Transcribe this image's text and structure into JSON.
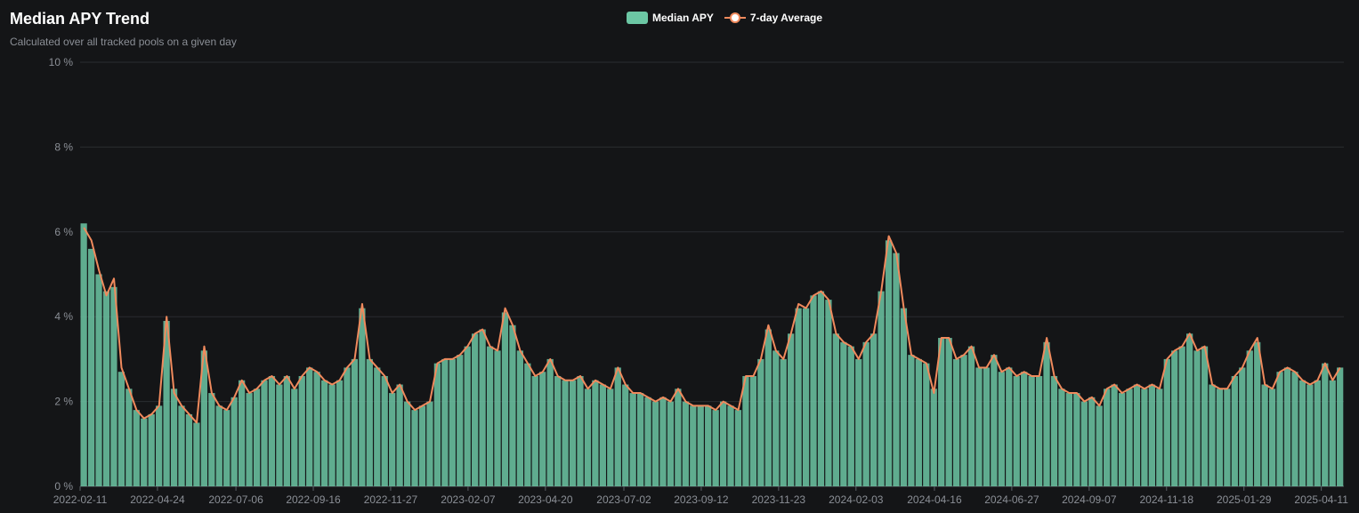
{
  "header": {
    "title": "Median APY Trend",
    "subtitle": "Calculated over all tracked pools on a given day"
  },
  "legend": [
    {
      "label": "Median APY",
      "color": "#6cc7a4",
      "kind": "bar"
    },
    {
      "label": "7-day Average",
      "color": "#f08a5d",
      "kind": "line"
    }
  ],
  "chart_data": {
    "type": "bar",
    "title": "Median APY Trend",
    "subtitle": "Calculated over all tracked pools on a given day",
    "xlabel": "",
    "ylabel": "",
    "ylim": [
      0,
      10
    ],
    "y_ticks": [
      0,
      2,
      4,
      6,
      8,
      10
    ],
    "y_tick_labels": [
      "0 %",
      "2 %",
      "4 %",
      "6 %",
      "8 %",
      "10 %"
    ],
    "grid": true,
    "legend_position": "top-center",
    "x_tick_labels": [
      "2022-02-11",
      "2022-04-24",
      "2022-07-06",
      "2022-09-16",
      "2022-11-27",
      "2023-02-07",
      "2023-04-20",
      "2023-07-02",
      "2023-09-12",
      "2023-11-23",
      "2024-02-03",
      "2024-04-16",
      "2024-06-27",
      "2024-09-07",
      "2024-11-18",
      "2025-01-29",
      "2025-04-11"
    ],
    "x_tick_interval_days": 72,
    "series_weekly": [
      {
        "week_start": "2022-02-11",
        "median_apy": 6.2,
        "avg_7d": 6.1
      },
      {
        "week_start": "2022-02-18",
        "median_apy": 5.6,
        "avg_7d": 5.8
      },
      {
        "week_start": "2022-02-25",
        "median_apy": 5.0,
        "avg_7d": 5.1
      },
      {
        "week_start": "2022-03-04",
        "median_apy": 4.6,
        "avg_7d": 4.5
      },
      {
        "week_start": "2022-03-11",
        "median_apy": 4.7,
        "avg_7d": 4.9
      },
      {
        "week_start": "2022-03-18",
        "median_apy": 2.7,
        "avg_7d": 2.8
      },
      {
        "week_start": "2022-03-25",
        "median_apy": 2.3,
        "avg_7d": 2.3
      },
      {
        "week_start": "2022-04-01",
        "median_apy": 1.8,
        "avg_7d": 1.8
      },
      {
        "week_start": "2022-04-08",
        "median_apy": 1.6,
        "avg_7d": 1.6
      },
      {
        "week_start": "2022-04-15",
        "median_apy": 1.7,
        "avg_7d": 1.7
      },
      {
        "week_start": "2022-04-22",
        "median_apy": 1.9,
        "avg_7d": 1.9
      },
      {
        "week_start": "2022-04-29",
        "median_apy": 3.9,
        "avg_7d": 4.0
      },
      {
        "week_start": "2022-05-06",
        "median_apy": 2.3,
        "avg_7d": 2.2
      },
      {
        "week_start": "2022-05-13",
        "median_apy": 1.9,
        "avg_7d": 1.9
      },
      {
        "week_start": "2022-05-20",
        "median_apy": 1.7,
        "avg_7d": 1.7
      },
      {
        "week_start": "2022-05-27",
        "median_apy": 1.5,
        "avg_7d": 1.5
      },
      {
        "week_start": "2022-06-03",
        "median_apy": 3.2,
        "avg_7d": 3.3
      },
      {
        "week_start": "2022-06-10",
        "median_apy": 2.2,
        "avg_7d": 2.2
      },
      {
        "week_start": "2022-06-17",
        "median_apy": 1.9,
        "avg_7d": 1.9
      },
      {
        "week_start": "2022-06-24",
        "median_apy": 1.8,
        "avg_7d": 1.8
      },
      {
        "week_start": "2022-07-01",
        "median_apy": 2.1,
        "avg_7d": 2.1
      },
      {
        "week_start": "2022-07-08",
        "median_apy": 2.5,
        "avg_7d": 2.5
      },
      {
        "week_start": "2022-07-15",
        "median_apy": 2.2,
        "avg_7d": 2.2
      },
      {
        "week_start": "2022-07-22",
        "median_apy": 2.3,
        "avg_7d": 2.3
      },
      {
        "week_start": "2022-07-29",
        "median_apy": 2.5,
        "avg_7d": 2.5
      },
      {
        "week_start": "2022-08-05",
        "median_apy": 2.6,
        "avg_7d": 2.6
      },
      {
        "week_start": "2022-08-12",
        "median_apy": 2.4,
        "avg_7d": 2.4
      },
      {
        "week_start": "2022-08-19",
        "median_apy": 2.6,
        "avg_7d": 2.6
      },
      {
        "week_start": "2022-08-26",
        "median_apy": 2.3,
        "avg_7d": 2.3
      },
      {
        "week_start": "2022-09-02",
        "median_apy": 2.6,
        "avg_7d": 2.6
      },
      {
        "week_start": "2022-09-09",
        "median_apy": 2.8,
        "avg_7d": 2.8
      },
      {
        "week_start": "2022-09-16",
        "median_apy": 2.7,
        "avg_7d": 2.7
      },
      {
        "week_start": "2022-09-23",
        "median_apy": 2.5,
        "avg_7d": 2.5
      },
      {
        "week_start": "2022-09-30",
        "median_apy": 2.4,
        "avg_7d": 2.4
      },
      {
        "week_start": "2022-10-07",
        "median_apy": 2.5,
        "avg_7d": 2.5
      },
      {
        "week_start": "2022-10-14",
        "median_apy": 2.8,
        "avg_7d": 2.8
      },
      {
        "week_start": "2022-10-21",
        "median_apy": 3.0,
        "avg_7d": 3.0
      },
      {
        "week_start": "2022-10-28",
        "median_apy": 4.2,
        "avg_7d": 4.3
      },
      {
        "week_start": "2022-11-04",
        "median_apy": 3.0,
        "avg_7d": 3.0
      },
      {
        "week_start": "2022-11-11",
        "median_apy": 2.8,
        "avg_7d": 2.8
      },
      {
        "week_start": "2022-11-18",
        "median_apy": 2.6,
        "avg_7d": 2.6
      },
      {
        "week_start": "2022-11-25",
        "median_apy": 2.2,
        "avg_7d": 2.2
      },
      {
        "week_start": "2022-12-02",
        "median_apy": 2.4,
        "avg_7d": 2.4
      },
      {
        "week_start": "2022-12-09",
        "median_apy": 2.0,
        "avg_7d": 2.0
      },
      {
        "week_start": "2022-12-16",
        "median_apy": 1.8,
        "avg_7d": 1.8
      },
      {
        "week_start": "2022-12-23",
        "median_apy": 1.9,
        "avg_7d": 1.9
      },
      {
        "week_start": "2022-12-30",
        "median_apy": 2.0,
        "avg_7d": 2.0
      },
      {
        "week_start": "2023-01-06",
        "median_apy": 2.9,
        "avg_7d": 2.9
      },
      {
        "week_start": "2023-01-13",
        "median_apy": 3.0,
        "avg_7d": 3.0
      },
      {
        "week_start": "2023-01-20",
        "median_apy": 3.0,
        "avg_7d": 3.0
      },
      {
        "week_start": "2023-01-27",
        "median_apy": 3.1,
        "avg_7d": 3.1
      },
      {
        "week_start": "2023-02-03",
        "median_apy": 3.3,
        "avg_7d": 3.3
      },
      {
        "week_start": "2023-02-10",
        "median_apy": 3.6,
        "avg_7d": 3.6
      },
      {
        "week_start": "2023-02-17",
        "median_apy": 3.7,
        "avg_7d": 3.7
      },
      {
        "week_start": "2023-02-24",
        "median_apy": 3.3,
        "avg_7d": 3.3
      },
      {
        "week_start": "2023-03-03",
        "median_apy": 3.2,
        "avg_7d": 3.2
      },
      {
        "week_start": "2023-03-10",
        "median_apy": 4.1,
        "avg_7d": 4.2
      },
      {
        "week_start": "2023-03-17",
        "median_apy": 3.8,
        "avg_7d": 3.8
      },
      {
        "week_start": "2023-03-24",
        "median_apy": 3.2,
        "avg_7d": 3.2
      },
      {
        "week_start": "2023-03-31",
        "median_apy": 2.9,
        "avg_7d": 2.9
      },
      {
        "week_start": "2023-04-07",
        "median_apy": 2.6,
        "avg_7d": 2.6
      },
      {
        "week_start": "2023-04-14",
        "median_apy": 2.7,
        "avg_7d": 2.7
      },
      {
        "week_start": "2023-04-21",
        "median_apy": 3.0,
        "avg_7d": 3.0
      },
      {
        "week_start": "2023-04-28",
        "median_apy": 2.6,
        "avg_7d": 2.6
      },
      {
        "week_start": "2023-05-05",
        "median_apy": 2.5,
        "avg_7d": 2.5
      },
      {
        "week_start": "2023-05-12",
        "median_apy": 2.5,
        "avg_7d": 2.5
      },
      {
        "week_start": "2023-05-19",
        "median_apy": 2.6,
        "avg_7d": 2.6
      },
      {
        "week_start": "2023-05-26",
        "median_apy": 2.3,
        "avg_7d": 2.3
      },
      {
        "week_start": "2023-06-02",
        "median_apy": 2.5,
        "avg_7d": 2.5
      },
      {
        "week_start": "2023-06-09",
        "median_apy": 2.4,
        "avg_7d": 2.4
      },
      {
        "week_start": "2023-06-16",
        "median_apy": 2.3,
        "avg_7d": 2.3
      },
      {
        "week_start": "2023-06-23",
        "median_apy": 2.8,
        "avg_7d": 2.8
      },
      {
        "week_start": "2023-06-30",
        "median_apy": 2.4,
        "avg_7d": 2.4
      },
      {
        "week_start": "2023-07-07",
        "median_apy": 2.2,
        "avg_7d": 2.2
      },
      {
        "week_start": "2023-07-14",
        "median_apy": 2.2,
        "avg_7d": 2.2
      },
      {
        "week_start": "2023-07-21",
        "median_apy": 2.1,
        "avg_7d": 2.1
      },
      {
        "week_start": "2023-07-28",
        "median_apy": 2.0,
        "avg_7d": 2.0
      },
      {
        "week_start": "2023-08-04",
        "median_apy": 2.1,
        "avg_7d": 2.1
      },
      {
        "week_start": "2023-08-11",
        "median_apy": 2.0,
        "avg_7d": 2.0
      },
      {
        "week_start": "2023-08-18",
        "median_apy": 2.3,
        "avg_7d": 2.3
      },
      {
        "week_start": "2023-08-25",
        "median_apy": 2.0,
        "avg_7d": 2.0
      },
      {
        "week_start": "2023-09-01",
        "median_apy": 1.9,
        "avg_7d": 1.9
      },
      {
        "week_start": "2023-09-08",
        "median_apy": 1.9,
        "avg_7d": 1.9
      },
      {
        "week_start": "2023-09-15",
        "median_apy": 1.9,
        "avg_7d": 1.9
      },
      {
        "week_start": "2023-09-22",
        "median_apy": 1.8,
        "avg_7d": 1.8
      },
      {
        "week_start": "2023-09-29",
        "median_apy": 2.0,
        "avg_7d": 2.0
      },
      {
        "week_start": "2023-10-06",
        "median_apy": 1.9,
        "avg_7d": 1.9
      },
      {
        "week_start": "2023-10-13",
        "median_apy": 1.8,
        "avg_7d": 1.8
      },
      {
        "week_start": "2023-10-20",
        "median_apy": 2.6,
        "avg_7d": 2.6
      },
      {
        "week_start": "2023-10-27",
        "median_apy": 2.6,
        "avg_7d": 2.6
      },
      {
        "week_start": "2023-11-03",
        "median_apy": 3.0,
        "avg_7d": 3.0
      },
      {
        "week_start": "2023-11-10",
        "median_apy": 3.7,
        "avg_7d": 3.8
      },
      {
        "week_start": "2023-11-17",
        "median_apy": 3.2,
        "avg_7d": 3.2
      },
      {
        "week_start": "2023-11-24",
        "median_apy": 3.0,
        "avg_7d": 3.0
      },
      {
        "week_start": "2023-12-01",
        "median_apy": 3.6,
        "avg_7d": 3.6
      },
      {
        "week_start": "2023-12-08",
        "median_apy": 4.2,
        "avg_7d": 4.3
      },
      {
        "week_start": "2023-12-15",
        "median_apy": 4.2,
        "avg_7d": 4.2
      },
      {
        "week_start": "2023-12-22",
        "median_apy": 4.5,
        "avg_7d": 4.5
      },
      {
        "week_start": "2023-12-29",
        "median_apy": 4.6,
        "avg_7d": 4.6
      },
      {
        "week_start": "2024-01-05",
        "median_apy": 4.4,
        "avg_7d": 4.4
      },
      {
        "week_start": "2024-01-12",
        "median_apy": 3.6,
        "avg_7d": 3.6
      },
      {
        "week_start": "2024-01-19",
        "median_apy": 3.4,
        "avg_7d": 3.4
      },
      {
        "week_start": "2024-01-26",
        "median_apy": 3.3,
        "avg_7d": 3.3
      },
      {
        "week_start": "2024-02-02",
        "median_apy": 3.0,
        "avg_7d": 3.0
      },
      {
        "week_start": "2024-02-09",
        "median_apy": 3.4,
        "avg_7d": 3.4
      },
      {
        "week_start": "2024-02-16",
        "median_apy": 3.6,
        "avg_7d": 3.6
      },
      {
        "week_start": "2024-02-23",
        "median_apy": 4.6,
        "avg_7d": 4.6
      },
      {
        "week_start": "2024-03-01",
        "median_apy": 5.8,
        "avg_7d": 5.9
      },
      {
        "week_start": "2024-03-08",
        "median_apy": 5.5,
        "avg_7d": 5.5
      },
      {
        "week_start": "2024-03-15",
        "median_apy": 4.2,
        "avg_7d": 4.2
      },
      {
        "week_start": "2024-03-22",
        "median_apy": 3.1,
        "avg_7d": 3.1
      },
      {
        "week_start": "2024-03-29",
        "median_apy": 3.0,
        "avg_7d": 3.0
      },
      {
        "week_start": "2024-04-05",
        "median_apy": 2.9,
        "avg_7d": 2.9
      },
      {
        "week_start": "2024-04-12",
        "median_apy": 2.3,
        "avg_7d": 2.2
      },
      {
        "week_start": "2024-04-19",
        "median_apy": 3.5,
        "avg_7d": 3.5
      },
      {
        "week_start": "2024-04-26",
        "median_apy": 3.5,
        "avg_7d": 3.5
      },
      {
        "week_start": "2024-05-03",
        "median_apy": 3.0,
        "avg_7d": 3.0
      },
      {
        "week_start": "2024-05-10",
        "median_apy": 3.1,
        "avg_7d": 3.1
      },
      {
        "week_start": "2024-05-17",
        "median_apy": 3.3,
        "avg_7d": 3.3
      },
      {
        "week_start": "2024-05-24",
        "median_apy": 2.8,
        "avg_7d": 2.8
      },
      {
        "week_start": "2024-05-31",
        "median_apy": 2.8,
        "avg_7d": 2.8
      },
      {
        "week_start": "2024-06-07",
        "median_apy": 3.1,
        "avg_7d": 3.1
      },
      {
        "week_start": "2024-06-14",
        "median_apy": 2.7,
        "avg_7d": 2.7
      },
      {
        "week_start": "2024-06-21",
        "median_apy": 2.8,
        "avg_7d": 2.8
      },
      {
        "week_start": "2024-06-28",
        "median_apy": 2.6,
        "avg_7d": 2.6
      },
      {
        "week_start": "2024-07-05",
        "median_apy": 2.7,
        "avg_7d": 2.7
      },
      {
        "week_start": "2024-07-12",
        "median_apy": 2.6,
        "avg_7d": 2.6
      },
      {
        "week_start": "2024-07-19",
        "median_apy": 2.6,
        "avg_7d": 2.6
      },
      {
        "week_start": "2024-07-26",
        "median_apy": 3.4,
        "avg_7d": 3.5
      },
      {
        "week_start": "2024-08-02",
        "median_apy": 2.6,
        "avg_7d": 2.6
      },
      {
        "week_start": "2024-08-09",
        "median_apy": 2.3,
        "avg_7d": 2.3
      },
      {
        "week_start": "2024-08-16",
        "median_apy": 2.2,
        "avg_7d": 2.2
      },
      {
        "week_start": "2024-08-23",
        "median_apy": 2.2,
        "avg_7d": 2.2
      },
      {
        "week_start": "2024-08-30",
        "median_apy": 2.0,
        "avg_7d": 2.0
      },
      {
        "week_start": "2024-09-06",
        "median_apy": 2.1,
        "avg_7d": 2.1
      },
      {
        "week_start": "2024-09-13",
        "median_apy": 1.9,
        "avg_7d": 1.9
      },
      {
        "week_start": "2024-09-20",
        "median_apy": 2.3,
        "avg_7d": 2.3
      },
      {
        "week_start": "2024-09-27",
        "median_apy": 2.4,
        "avg_7d": 2.4
      },
      {
        "week_start": "2024-10-04",
        "median_apy": 2.2,
        "avg_7d": 2.2
      },
      {
        "week_start": "2024-10-11",
        "median_apy": 2.3,
        "avg_7d": 2.3
      },
      {
        "week_start": "2024-10-18",
        "median_apy": 2.4,
        "avg_7d": 2.4
      },
      {
        "week_start": "2024-10-25",
        "median_apy": 2.3,
        "avg_7d": 2.3
      },
      {
        "week_start": "2024-11-01",
        "median_apy": 2.4,
        "avg_7d": 2.4
      },
      {
        "week_start": "2024-11-08",
        "median_apy": 2.3,
        "avg_7d": 2.3
      },
      {
        "week_start": "2024-11-15",
        "median_apy": 3.0,
        "avg_7d": 3.0
      },
      {
        "week_start": "2024-11-22",
        "median_apy": 3.2,
        "avg_7d": 3.2
      },
      {
        "week_start": "2024-11-29",
        "median_apy": 3.3,
        "avg_7d": 3.3
      },
      {
        "week_start": "2024-12-06",
        "median_apy": 3.6,
        "avg_7d": 3.6
      },
      {
        "week_start": "2024-12-13",
        "median_apy": 3.2,
        "avg_7d": 3.2
      },
      {
        "week_start": "2024-12-20",
        "median_apy": 3.3,
        "avg_7d": 3.3
      },
      {
        "week_start": "2024-12-27",
        "median_apy": 2.4,
        "avg_7d": 2.4
      },
      {
        "week_start": "2025-01-03",
        "median_apy": 2.3,
        "avg_7d": 2.3
      },
      {
        "week_start": "2025-01-10",
        "median_apy": 2.3,
        "avg_7d": 2.3
      },
      {
        "week_start": "2025-01-17",
        "median_apy": 2.6,
        "avg_7d": 2.6
      },
      {
        "week_start": "2025-01-24",
        "median_apy": 2.8,
        "avg_7d": 2.8
      },
      {
        "week_start": "2025-01-31",
        "median_apy": 3.2,
        "avg_7d": 3.2
      },
      {
        "week_start": "2025-02-07",
        "median_apy": 3.4,
        "avg_7d": 3.5
      },
      {
        "week_start": "2025-02-14",
        "median_apy": 2.4,
        "avg_7d": 2.4
      },
      {
        "week_start": "2025-02-21",
        "median_apy": 2.3,
        "avg_7d": 2.3
      },
      {
        "week_start": "2025-02-28",
        "median_apy": 2.7,
        "avg_7d": 2.7
      },
      {
        "week_start": "2025-03-07",
        "median_apy": 2.8,
        "avg_7d": 2.8
      },
      {
        "week_start": "2025-03-14",
        "median_apy": 2.7,
        "avg_7d": 2.7
      },
      {
        "week_start": "2025-03-21",
        "median_apy": 2.5,
        "avg_7d": 2.5
      },
      {
        "week_start": "2025-03-28",
        "median_apy": 2.4,
        "avg_7d": 2.4
      },
      {
        "week_start": "2025-04-04",
        "median_apy": 2.5,
        "avg_7d": 2.5
      },
      {
        "week_start": "2025-04-11",
        "median_apy": 2.9,
        "avg_7d": 2.9
      },
      {
        "week_start": "2025-04-18",
        "median_apy": 2.5,
        "avg_7d": 2.5
      },
      {
        "week_start": "2025-04-25",
        "median_apy": 2.8,
        "avg_7d": 2.8
      }
    ]
  }
}
